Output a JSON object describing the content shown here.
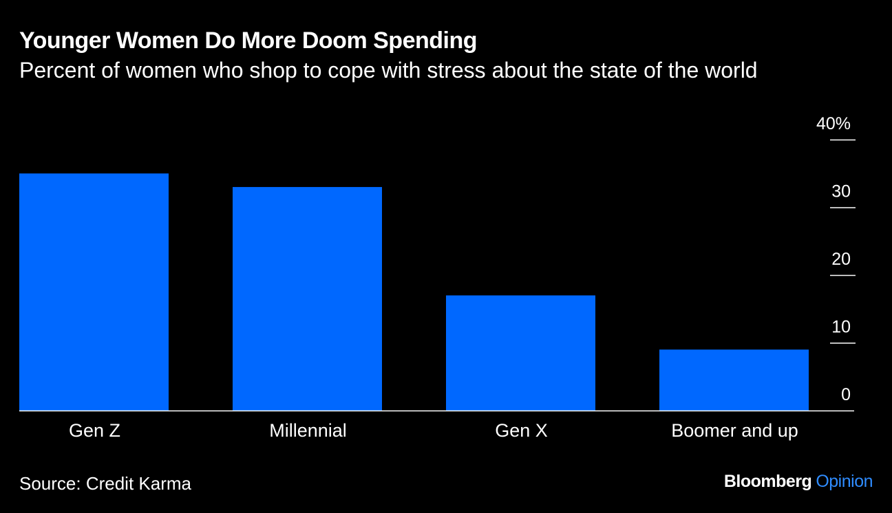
{
  "colors": {
    "background": "#000000",
    "bar": "#0068ff",
    "text": "#ffffff",
    "brand_accent": "#2f8cff"
  },
  "chart_data": {
    "type": "bar",
    "title": "Younger Women Do More Doom Spending",
    "subtitle": "Percent of women who shop to cope with stress about the state of the world",
    "categories": [
      "Gen Z",
      "Millennial",
      "Gen X",
      "Boomer and up"
    ],
    "values": [
      35,
      33,
      17,
      9
    ],
    "ylim": [
      0,
      40
    ],
    "yticks": [
      "40%",
      "30",
      "20",
      "10",
      "0"
    ],
    "ytick_values": [
      40,
      30,
      20,
      10,
      0
    ],
    "y_axis_position": "right",
    "grid": false,
    "xlabel": "",
    "ylabel": ""
  },
  "footer": {
    "source": "Source: Credit Karma",
    "brand_name": "Bloomberg",
    "brand_section": "Opinion"
  }
}
